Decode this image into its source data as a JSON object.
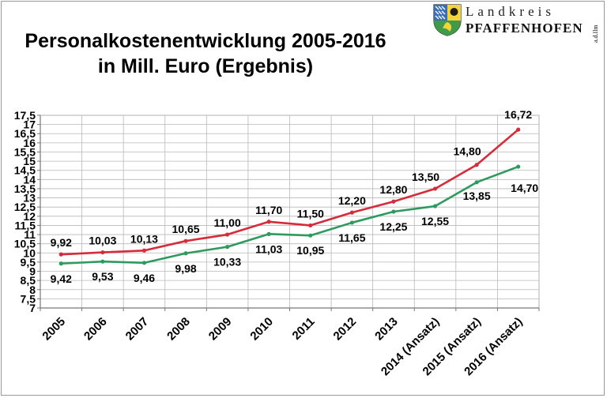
{
  "header": {
    "title_line1": "Personalkostenentwicklung 2005-2016",
    "title_line2": "in Mill. Euro (Ergebnis)"
  },
  "logo": {
    "line1": "Landkreis",
    "line2": "PFAFFENHOFEN",
    "suffix": "a.d.Ilm",
    "icon": "coat-of-arms-icon"
  },
  "chart_data": {
    "type": "line",
    "title": "Personalkostenentwicklung 2005-2016 in Mill. Euro (Ergebnis)",
    "categories": [
      "2005",
      "2006",
      "2007",
      "2008",
      "2009",
      "2010",
      "2011",
      "2012",
      "2013",
      "2014 (Ansatz)",
      "2015 (Ansatz)",
      "2016 (Ansatz)"
    ],
    "series": [
      {
        "color": "#d62b3b",
        "values": [
          9.92,
          10.03,
          10.13,
          10.65,
          11.0,
          11.7,
          11.5,
          12.2,
          12.8,
          13.5,
          14.8,
          16.72
        ],
        "labels": [
          "9,92",
          "10,03",
          "10,13",
          "10,65",
          "11,00",
          "11,70",
          "11,50",
          "12,20",
          "12,80",
          "13,50",
          "14,80",
          "16,72"
        ]
      },
      {
        "color": "#2e9a5e",
        "values": [
          9.42,
          9.53,
          9.46,
          9.98,
          10.33,
          11.03,
          10.95,
          11.65,
          12.25,
          12.55,
          13.85,
          14.7
        ],
        "labels": [
          "9,42",
          "9,53",
          "9,46",
          "9,98",
          "10,33",
          "11,03",
          "10,95",
          "11,65",
          "12,25",
          "12,55",
          "13,85",
          "14,70"
        ]
      }
    ],
    "ylim": [
      7,
      17.5
    ],
    "yticks": [
      7,
      7.5,
      8,
      8.5,
      9,
      9.5,
      10,
      10.5,
      11,
      11.5,
      12,
      12.5,
      13,
      13.5,
      14,
      14.5,
      15,
      15.5,
      16,
      16.5,
      17,
      17.5
    ],
    "ytick_labels": [
      "7",
      "7,5",
      "8",
      "8,5",
      "9",
      "9,5",
      "10",
      "10,5",
      "11",
      "11,5",
      "12",
      "12,5",
      "13",
      "13,5",
      "14",
      "14,5",
      "15",
      "15,5",
      "16",
      "16,5",
      "17",
      "17,5"
    ],
    "grid": true,
    "legend": "none",
    "xlabel": "",
    "ylabel": ""
  }
}
